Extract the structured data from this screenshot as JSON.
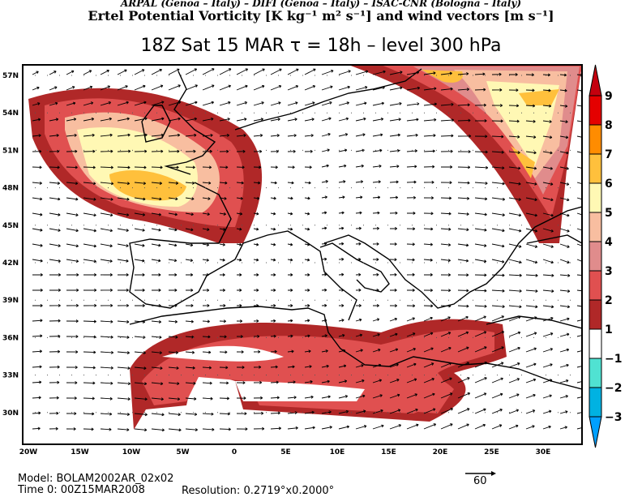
{
  "header": {
    "institutions": "ARPAL (Genoa – Italy)  –  DIFI (Genoa – Italy)  –  ISAC-CNR (Bologna – Italy)",
    "title": "Ertel Potential Vorticity [K kg⁻¹ m² s⁻¹] and wind vectors [m s⁻¹]",
    "subtitle": "18Z Sat 15 MAR   τ = 18h   –   level 300 hPa"
  },
  "map": {
    "lat_labels": [
      "57N",
      "54N",
      "51N",
      "48N",
      "45N",
      "42N",
      "39N",
      "36N",
      "33N",
      "30N"
    ],
    "lon_labels": [
      "20W",
      "15W",
      "10W",
      "5W",
      "0",
      "5E",
      "10E",
      "15E",
      "20E",
      "25E",
      "30E"
    ]
  },
  "colorbar": {
    "labels": [
      "9",
      "8",
      "7",
      "6",
      "5",
      "4",
      "3",
      "2",
      "1",
      "−1",
      "−2",
      "−3"
    ],
    "colors": [
      "#c4000e",
      "#e40000",
      "#ff8c00",
      "#ffc03c",
      "#fff8b4",
      "#f8bea0",
      "#e08c8c",
      "#e05050",
      "#b02828",
      "#ffffff",
      "#50e2d2",
      "#00b2e2",
      "#00a0ff"
    ]
  },
  "footer": {
    "model": "Model: BOLAM2002AR_02x02",
    "time": "Time 0: 00Z15MAR2008",
    "resolution": "Resolution: 0.2719°x0.2000°",
    "ref_vector": "60"
  }
}
